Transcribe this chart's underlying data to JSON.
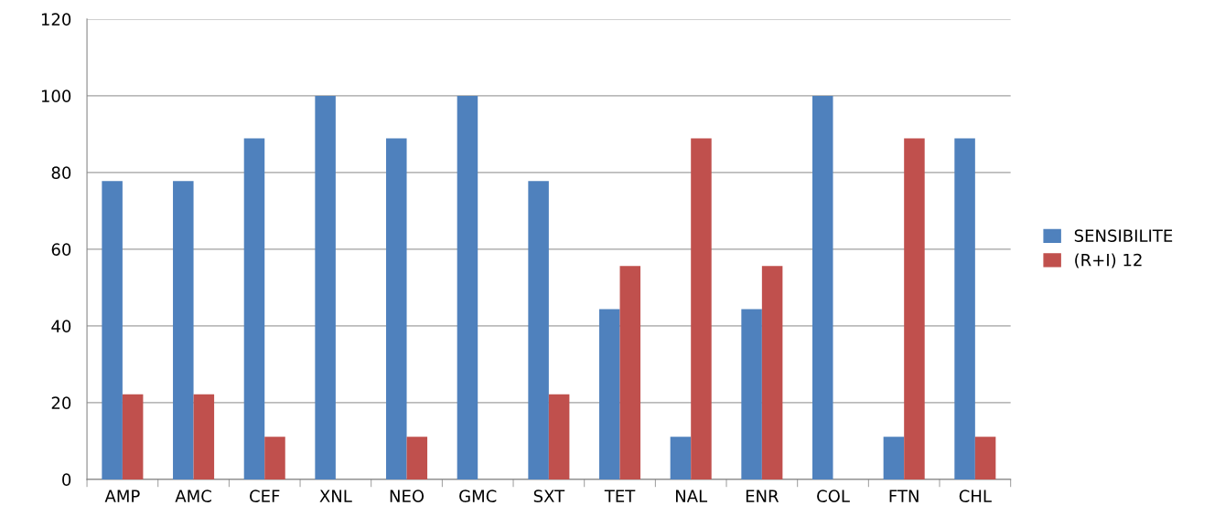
{
  "chart_data": {
    "type": "bar",
    "categories": [
      "AMP",
      "AMC",
      "CEF",
      "XNL",
      "NEO",
      "GMC",
      "SXT",
      "TET",
      "NAL",
      "ENR",
      "COL",
      "FTN",
      "CHL"
    ],
    "series": [
      {
        "name": "SENSIBILITE",
        "color": "#4f81bd",
        "values": [
          77.8,
          77.8,
          88.9,
          100,
          88.9,
          100,
          77.8,
          44.4,
          11.1,
          44.4,
          100,
          11.1,
          88.9
        ]
      },
      {
        "name": "(R+I) 12",
        "color": "#c0504d",
        "values": [
          22.2,
          22.2,
          11.1,
          0,
          11.1,
          0,
          22.2,
          55.6,
          88.9,
          55.6,
          0,
          88.9,
          11.1
        ]
      }
    ],
    "ylim": [
      0,
      120
    ],
    "yticks": [
      0,
      20,
      40,
      60,
      80,
      100,
      120
    ],
    "grid": "y",
    "legend": "right"
  }
}
